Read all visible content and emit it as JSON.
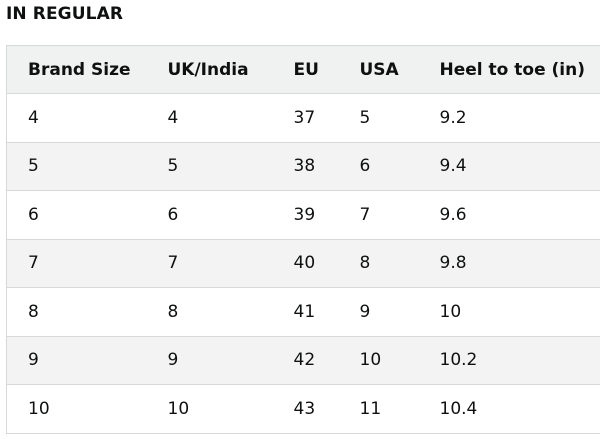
{
  "heading": "IN REGULAR",
  "table": {
    "headers": [
      "Brand Size",
      "UK/India",
      "EU",
      "USA",
      "Heel to toe (in)"
    ],
    "rows": [
      [
        "4",
        "4",
        "37",
        "5",
        "9.2"
      ],
      [
        "5",
        "5",
        "38",
        "6",
        "9.4"
      ],
      [
        "6",
        "6",
        "39",
        "7",
        "9.6"
      ],
      [
        "7",
        "7",
        "40",
        "8",
        "9.8"
      ],
      [
        "8",
        "8",
        "41",
        "9",
        "10"
      ],
      [
        "9",
        "9",
        "42",
        "10",
        "10.2"
      ],
      [
        "10",
        "10",
        "43",
        "11",
        "10.4"
      ]
    ]
  }
}
